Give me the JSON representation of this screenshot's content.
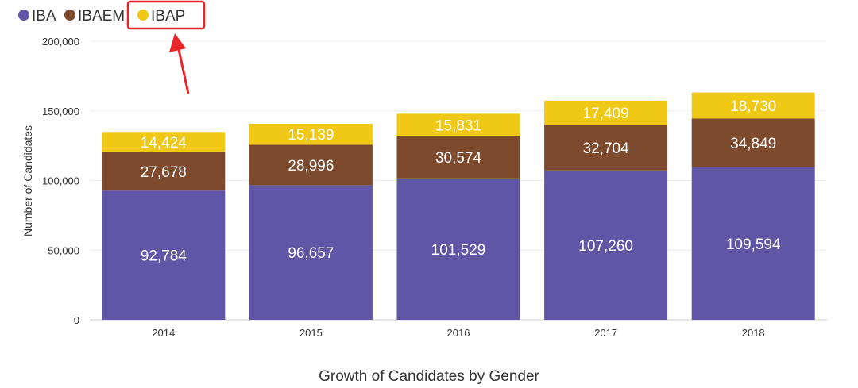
{
  "chart_data": {
    "type": "bar",
    "stacked": true,
    "title": "Growth of Candidates by Gender",
    "ylabel": "Number of Candidates",
    "xlabel": "",
    "categories": [
      "2014",
      "2015",
      "2016",
      "2017",
      "2018"
    ],
    "y_ticks": [
      "0",
      "50,000",
      "100,000",
      "150,000",
      "200,000"
    ],
    "ylim": [
      0,
      200000
    ],
    "grid": true,
    "legend_position": "top-left",
    "series": [
      {
        "name": "IBA",
        "color": "#6156a5",
        "values": [
          92784,
          96657,
          101529,
          107260,
          109594
        ],
        "labels": [
          "92,784",
          "96,657",
          "101,529",
          "107,260",
          "109,594"
        ]
      },
      {
        "name": "IBAEM",
        "color": "#7d4a2e",
        "values": [
          27678,
          28996,
          30574,
          32704,
          34849
        ],
        "labels": [
          "27,678",
          "28,996",
          "30,574",
          "32,704",
          "34,849"
        ]
      },
      {
        "name": "IBAP",
        "color": "#f0c916",
        "values": [
          14424,
          15139,
          15831,
          17409,
          18730
        ],
        "labels": [
          "14,424",
          "15,139",
          "15,831",
          "17,409",
          "18,730"
        ]
      }
    ]
  },
  "annotation": {
    "highlight_color": "#e8262a",
    "highlighted_legend_item": "IBAP"
  }
}
